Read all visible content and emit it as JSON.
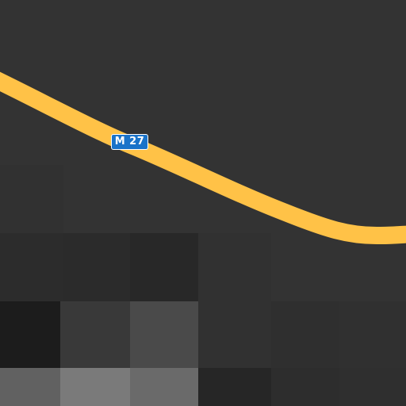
{
  "map": {
    "background_color": "#333333",
    "road": {
      "color": "#ffc247",
      "label": "M 27",
      "shield_color": "#1a73c9"
    }
  }
}
